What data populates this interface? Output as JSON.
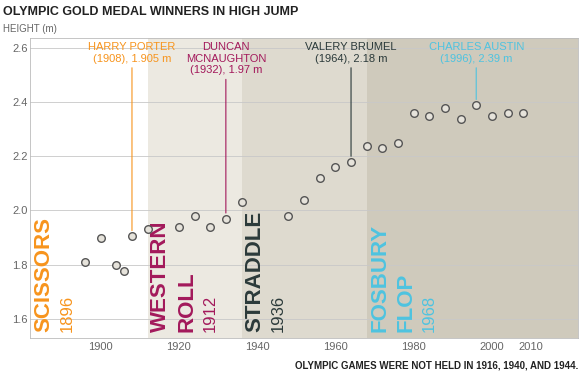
{
  "chart_data": {
    "type": "scatter",
    "title": "OLYMPIC GOLD MEDAL WINNERS IN HIGH JUMP",
    "y_label": "HEIGHT (m)",
    "x": [
      1896,
      1900,
      1904,
      1906,
      1908,
      1912,
      1920,
      1924,
      1928,
      1932,
      1936,
      1948,
      1952,
      1956,
      1960,
      1964,
      1968,
      1972,
      1976,
      1980,
      1984,
      1988,
      1992,
      1996,
      2000,
      2004,
      2008
    ],
    "values": [
      1.81,
      1.9,
      1.8,
      1.775,
      1.905,
      1.93,
      1.94,
      1.98,
      1.94,
      1.97,
      2.03,
      1.98,
      2.04,
      2.12,
      2.16,
      2.18,
      2.24,
      2.23,
      2.25,
      2.36,
      2.35,
      2.38,
      2.34,
      2.39,
      2.35,
      2.36,
      2.36
    ],
    "color": "#555555",
    "marker": "o",
    "xlim": [
      1882,
      2022
    ],
    "ylim": [
      1.53,
      2.64
    ],
    "xticks": [
      1900,
      1920,
      1940,
      1960,
      1980,
      2000,
      2010
    ],
    "yticks": [
      1.6,
      1.8,
      2.0,
      2.2,
      2.4,
      2.6
    ],
    "grid": "y",
    "techniques": [
      {
        "name": "SCISSORS",
        "year": 1896,
        "color": "#f7941d"
      },
      {
        "name": "WESTERN ROLL",
        "year": 1912,
        "color": "#a3195b"
      },
      {
        "name": "STRADDLE",
        "year": 1936,
        "color": "#2b3a3a"
      },
      {
        "name": "FOSBURY FLOP",
        "year": 1968,
        "color": "#4ec3e0"
      }
    ],
    "annotations": [
      {
        "text": "HARRY PORTER\n(1908), 1.905 m",
        "x": 1908,
        "y": 1.905,
        "color": "#f7941d"
      },
      {
        "text": "DUNCAN\nMCNAUGHTON\n(1932), 1.97 m",
        "x": 1932,
        "y": 1.97,
        "color": "#a3195b"
      },
      {
        "text": "VALERY BRUMEL\n(1964), 2.18 m",
        "x": 1964,
        "y": 2.18,
        "color": "#2b3a3a"
      },
      {
        "text": "CHARLES AUSTIN\n(1996), 2.39 m",
        "x": 1996,
        "y": 2.39,
        "color": "#4ec3e0"
      }
    ],
    "note": "OLYMPIC GAMES WERE NOT HELD IN 1916, 1940, AND 1944."
  }
}
